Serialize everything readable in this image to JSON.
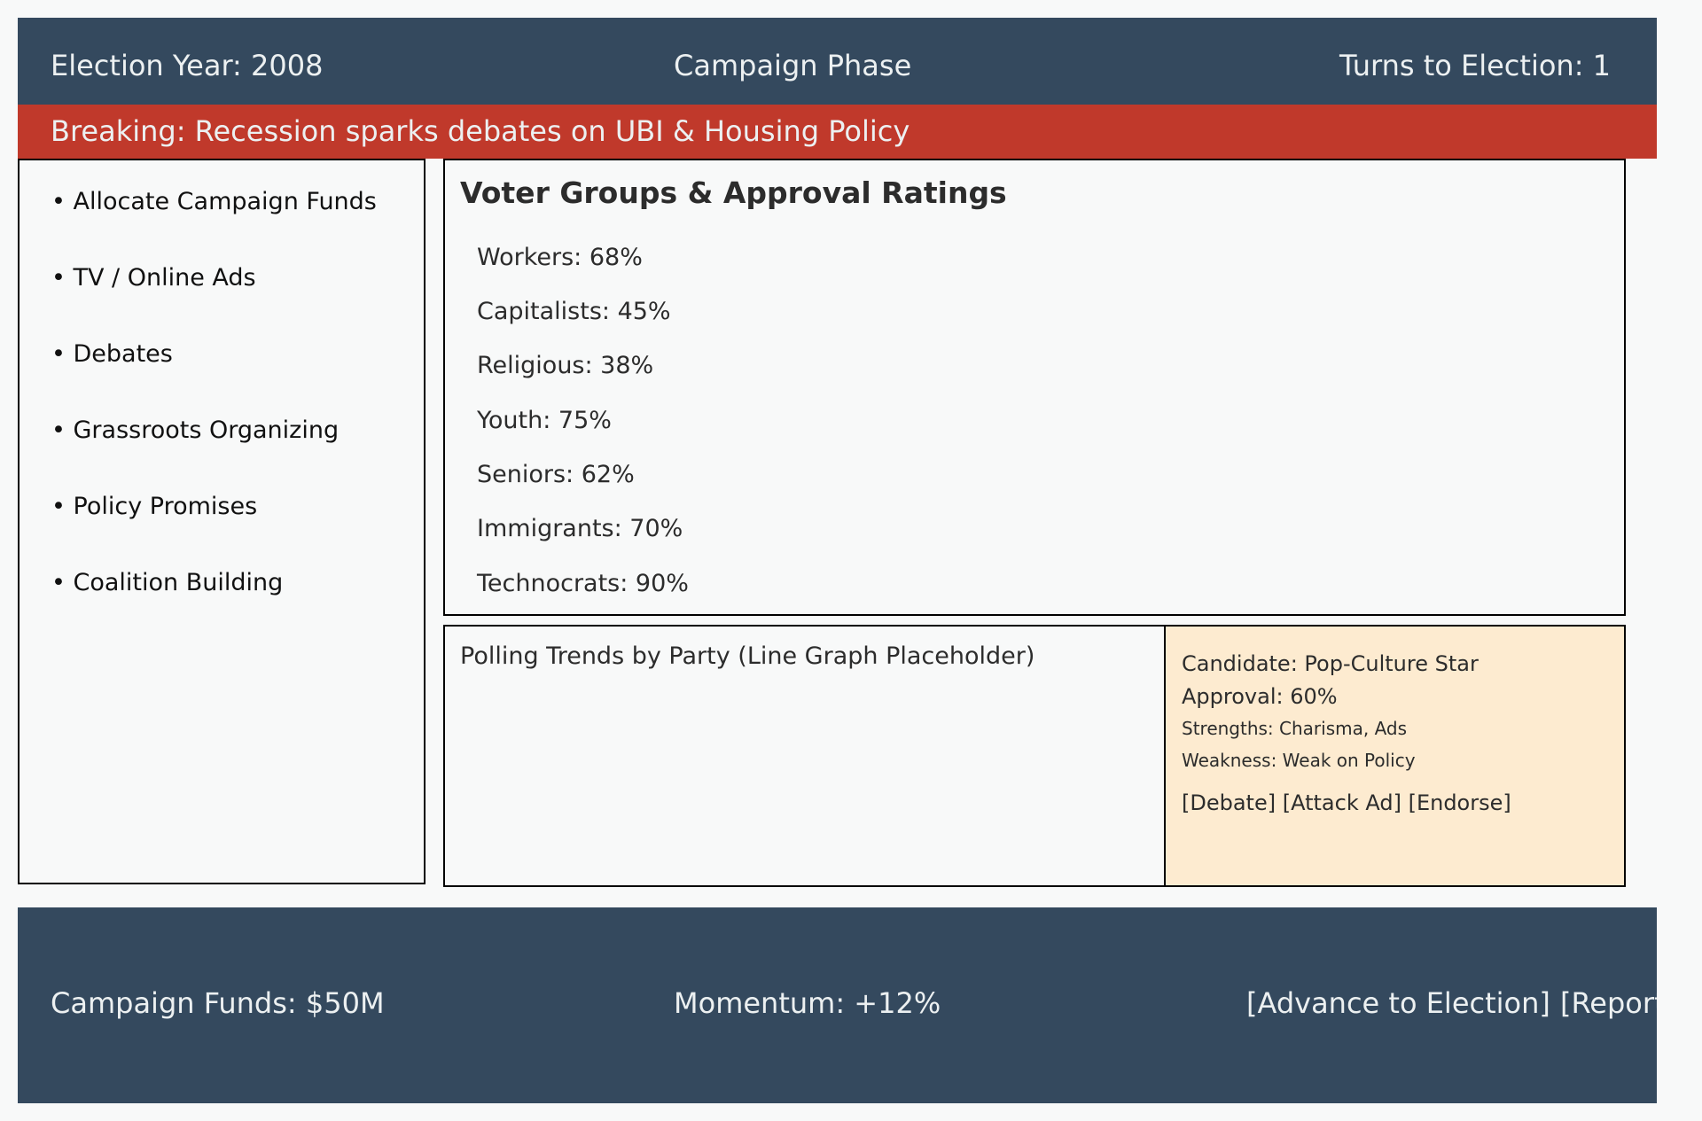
{
  "header": {
    "election_year": "Election Year: 2008",
    "phase": "Campaign Phase",
    "turns": "Turns to Election: 1"
  },
  "news": {
    "headline": "Breaking: Recession sparks debates on UBI & Housing Policy"
  },
  "sidebar": {
    "items": [
      {
        "label": "• Allocate Campaign Funds"
      },
      {
        "label": "• TV / Online Ads"
      },
      {
        "label": "• Debates"
      },
      {
        "label": "• Grassroots Organizing"
      },
      {
        "label": "• Policy Promises"
      },
      {
        "label": "• Coalition Building"
      }
    ]
  },
  "voters": {
    "title": "Voter Groups & Approval Ratings",
    "groups": [
      {
        "label": "Workers: 68%",
        "name": "Workers",
        "approval": 68
      },
      {
        "label": "Capitalists: 45%",
        "name": "Capitalists",
        "approval": 45
      },
      {
        "label": "Religious: 38%",
        "name": "Religious",
        "approval": 38
      },
      {
        "label": "Youth: 75%",
        "name": "Youth",
        "approval": 75
      },
      {
        "label": "Seniors: 62%",
        "name": "Seniors",
        "approval": 62
      },
      {
        "label": "Immigrants: 70%",
        "name": "Immigrants",
        "approval": 70
      },
      {
        "label": "Technocrats: 90%",
        "name": "Technocrats",
        "approval": 90
      }
    ]
  },
  "polling": {
    "title": "Polling Trends by Party (Line Graph Placeholder)"
  },
  "candidate": {
    "name": "Candidate: Pop-Culture Star",
    "approval": "Approval: 60%",
    "strengths": "Strengths: Charisma, Ads",
    "weakness": "Weakness: Weak on Policy",
    "actions": {
      "debate": "[Debate]",
      "attack_ad": "[Attack Ad]",
      "endorse": "[Endorse]"
    }
  },
  "footer": {
    "funds": "Campaign Funds: $50M",
    "momentum": "Momentum: +12%",
    "advance": "[Advance to Election]",
    "reports": "[Reports]"
  },
  "colors": {
    "header_bg": "#34495e",
    "news_bg": "#c0392b",
    "candidate_bg": "#fdebd0",
    "text_light": "#ecf0f1"
  }
}
